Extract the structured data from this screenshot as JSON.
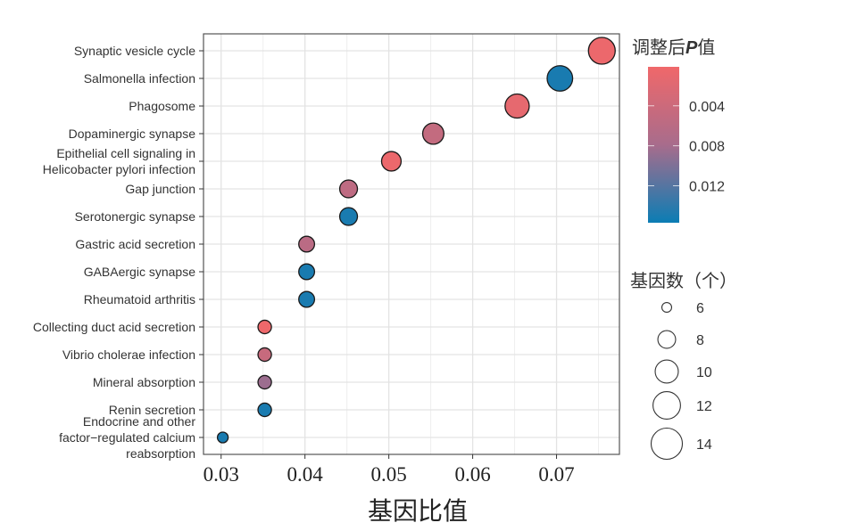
{
  "chart_data": {
    "type": "scatter",
    "title": "",
    "xlabel": "基因比值",
    "ylabel": "",
    "xlim": [
      0.0279,
      0.0775
    ],
    "xticks": [
      0.03,
      0.04,
      0.05,
      0.06,
      0.07
    ],
    "xtick_labels": [
      "0.03",
      "0.04",
      "0.05",
      "0.06",
      "0.07"
    ],
    "grid": true,
    "points": [
      {
        "term": "Synaptic vesicle cycle",
        "gene_ratio": 0.0754,
        "count": 15,
        "padj": 0.0005
      },
      {
        "term": "Salmonella infection",
        "gene_ratio": 0.0704,
        "count": 14,
        "padj": 0.015
      },
      {
        "term": "Phagosome",
        "gene_ratio": 0.0653,
        "count": 13,
        "padj": 0.0012
      },
      {
        "term": "Dopaminergic synapse",
        "gene_ratio": 0.0553,
        "count": 11,
        "padj": 0.005
      },
      {
        "term": "Epithelial cell signaling in\nHelicobacter pylori infection",
        "gene_ratio": 0.0503,
        "count": 10,
        "padj": 0.0005
      },
      {
        "term": "Gap junction",
        "gene_ratio": 0.0452,
        "count": 9,
        "padj": 0.0055
      },
      {
        "term": "Serotonergic synapse",
        "gene_ratio": 0.0452,
        "count": 9,
        "padj": 0.015
      },
      {
        "term": "Gastric acid secretion",
        "gene_ratio": 0.0402,
        "count": 8,
        "padj": 0.006
      },
      {
        "term": "GABAergic synapse",
        "gene_ratio": 0.0402,
        "count": 8,
        "padj": 0.015
      },
      {
        "term": "Rheumatoid arthritis",
        "gene_ratio": 0.0402,
        "count": 8,
        "padj": 0.015
      },
      {
        "term": "Collecting duct acid secretion",
        "gene_ratio": 0.0352,
        "count": 7,
        "padj": 0.0003
      },
      {
        "term": "Vibrio cholerae infection",
        "gene_ratio": 0.0352,
        "count": 7,
        "padj": 0.0045
      },
      {
        "term": "Mineral absorption",
        "gene_ratio": 0.0352,
        "count": 7,
        "padj": 0.0085
      },
      {
        "term": "Renin secretion",
        "gene_ratio": 0.0352,
        "count": 7,
        "padj": 0.015
      },
      {
        "term": "Endocrine and other\nfactor−regulated calcium\nreabsorption",
        "gene_ratio": 0.0302,
        "count": 6,
        "padj": 0.015
      }
    ],
    "color_legend": {
      "title": "调整后P值",
      "title_main": "调整后",
      "title_italic": "P",
      "title_suffix": "值",
      "range": [
        0.0001,
        0.0157
      ],
      "ticks": [
        0.004,
        0.008,
        0.012
      ],
      "tick_labels": [
        "0.004",
        "0.008",
        "0.012"
      ],
      "low_color": "#F0686A",
      "mid_color": "#A86C8C",
      "high_color": "#0B7DB4"
    },
    "size_legend": {
      "title": "基因数（个）",
      "values": [
        6,
        8,
        10,
        12,
        14
      ],
      "labels": [
        "6",
        "8",
        "10",
        "12",
        "14"
      ]
    },
    "legend_placement": "right"
  }
}
